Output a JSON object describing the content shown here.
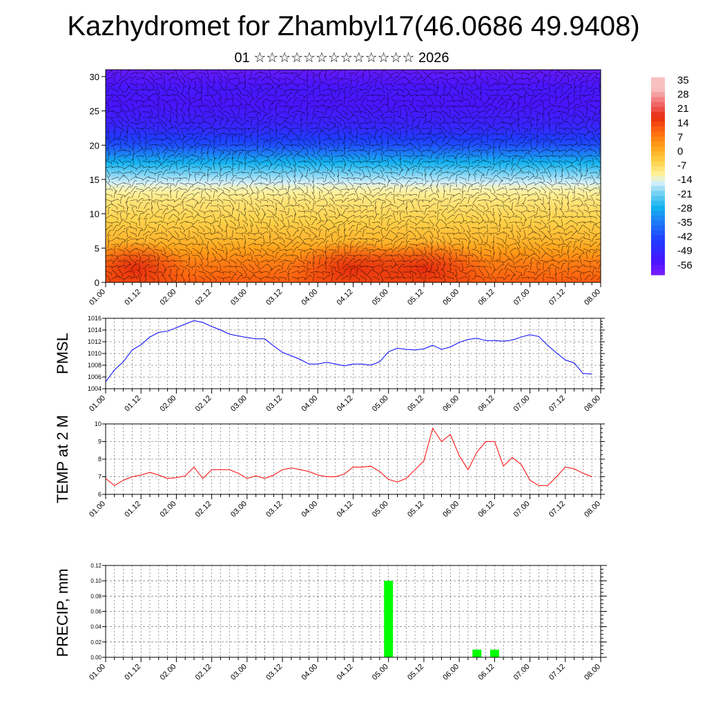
{
  "title": "Kazhydromet for Zhambyl17(46.0686 49.9408)",
  "subtitle": "01 ☆☆☆☆☆☆☆☆☆☆☆☆☆ 2026",
  "colors": {
    "pmsl_line": "#0000ff",
    "temp_line": "#ff0000",
    "precip_bar": "#00ff00",
    "grid": "#555555",
    "axis": "#000000",
    "wind_barb": "#000000"
  },
  "time_ticks": [
    "01.00",
    "01.12",
    "02.00",
    "02.12",
    "03.00",
    "03.12",
    "04.00",
    "04.12",
    "05.00",
    "05.12",
    "06.00",
    "06.12",
    "07.00",
    "07.12",
    "08.00"
  ],
  "chart_data": [
    {
      "type": "heatmap",
      "name": "cross-section temperature with wind barbs",
      "x_range": [
        0,
        168
      ],
      "x_unit": "hours from 01.00",
      "ylim": [
        0,
        31
      ],
      "y_ticks": [
        0,
        5,
        10,
        15,
        20,
        25,
        30
      ],
      "colorbar_labels": [
        "35",
        "28",
        "21",
        "14",
        "7",
        "0",
        "-7",
        "-14",
        "-21",
        "-28",
        "-35",
        "-42",
        "-49",
        "-56"
      ],
      "colorbar_range": [
        -63,
        42
      ],
      "colormap": [
        {
          "v": -63,
          "c": "#7b1fff"
        },
        {
          "v": -56,
          "c": "#4a14ff"
        },
        {
          "v": -45,
          "c": "#1f3cff"
        },
        {
          "v": -35,
          "c": "#1e7cf6"
        },
        {
          "v": -27,
          "c": "#12b4f0"
        },
        {
          "v": -19,
          "c": "#7fd4f5"
        },
        {
          "v": -14,
          "c": "#d6f0f8"
        },
        {
          "v": -10,
          "c": "#fff3a0"
        },
        {
          "v": -3,
          "c": "#ffd24a"
        },
        {
          "v": 5,
          "c": "#ffa21a"
        },
        {
          "v": 13,
          "c": "#ff6a10"
        },
        {
          "v": 21,
          "c": "#e82a10"
        },
        {
          "v": 28,
          "c": "#f06a6a"
        },
        {
          "v": 36,
          "c": "#f9c2c2"
        }
      ],
      "profile": [
        {
          "z": 0,
          "t": 15
        },
        {
          "z": 3,
          "t": 10
        },
        {
          "z": 6,
          "t": 2
        },
        {
          "z": 9,
          "t": -3
        },
        {
          "z": 12,
          "t": -7
        },
        {
          "z": 14,
          "t": -12
        },
        {
          "z": 16,
          "t": -20
        },
        {
          "z": 18,
          "t": -30
        },
        {
          "z": 20,
          "t": -42
        },
        {
          "z": 23,
          "t": -52
        },
        {
          "z": 26,
          "t": -56
        },
        {
          "z": 28,
          "t": -55
        },
        {
          "z": 31,
          "t": -60
        }
      ],
      "warm_cores": [
        {
          "x": 84,
          "z": 2,
          "dt": 8
        },
        {
          "x": 108,
          "z": 2,
          "dt": 9
        },
        {
          "x": 10,
          "z": 2,
          "dt": 4
        }
      ]
    },
    {
      "type": "line",
      "name": "PMSL",
      "ylabel": "PMSL",
      "ylim": [
        1004,
        1016
      ],
      "y_ticks": [
        1004,
        1006,
        1008,
        1010,
        1012,
        1014,
        1016
      ],
      "x": [
        0,
        3,
        6,
        9,
        12,
        15,
        18,
        21,
        24,
        27,
        30,
        33,
        36,
        39,
        42,
        45,
        48,
        51,
        54,
        57,
        60,
        63,
        66,
        69,
        72,
        75,
        78,
        81,
        84,
        87,
        90,
        93,
        96,
        99,
        102,
        105,
        108,
        111,
        114,
        117,
        120,
        123,
        126,
        129,
        132,
        135,
        138,
        141,
        144,
        147,
        150,
        153,
        156,
        159,
        162,
        165
      ],
      "y": [
        1005.2,
        1007.2,
        1008.6,
        1010.6,
        1011.5,
        1012.8,
        1013.6,
        1013.8,
        1014.4,
        1015.0,
        1015.6,
        1015.3,
        1014.6,
        1014.0,
        1013.3,
        1013.0,
        1012.7,
        1012.5,
        1012.5,
        1011.3,
        1010.2,
        1009.6,
        1009.0,
        1008.2,
        1008.2,
        1008.5,
        1008.2,
        1007.9,
        1008.2,
        1008.2,
        1008.0,
        1008.6,
        1010.3,
        1010.9,
        1010.7,
        1010.6,
        1010.8,
        1011.4,
        1010.7,
        1011.1,
        1011.9,
        1012.4,
        1012.6,
        1012.2,
        1012.2,
        1012.1,
        1012.3,
        1012.8,
        1013.2,
        1012.9,
        1011.4,
        1010.1,
        1008.9,
        1008.4,
        1006.6,
        1006.5
      ]
    },
    {
      "type": "line",
      "name": "TEMP at 2 M",
      "ylabel": "TEMP at 2 M",
      "ylim": [
        6,
        10
      ],
      "y_ticks": [
        6,
        7,
        8,
        9,
        10
      ],
      "x": [
        0,
        3,
        6,
        9,
        12,
        15,
        18,
        21,
        24,
        27,
        30,
        33,
        36,
        39,
        42,
        45,
        48,
        51,
        54,
        57,
        60,
        63,
        66,
        69,
        72,
        75,
        78,
        81,
        84,
        87,
        90,
        93,
        96,
        99,
        102,
        105,
        108,
        111,
        114,
        117,
        120,
        123,
        126,
        129,
        132,
        135,
        138,
        141,
        144,
        147,
        150,
        153,
        156,
        159,
        162,
        165
      ],
      "y": [
        6.9,
        6.5,
        6.8,
        7.0,
        7.1,
        7.25,
        7.1,
        6.9,
        6.95,
        7.05,
        7.55,
        6.9,
        7.4,
        7.4,
        7.4,
        7.2,
        6.9,
        7.05,
        6.9,
        7.1,
        7.4,
        7.5,
        7.4,
        7.3,
        7.1,
        7.0,
        7.0,
        7.15,
        7.55,
        7.55,
        7.6,
        7.3,
        6.85,
        6.7,
        6.9,
        7.4,
        7.9,
        9.75,
        9.0,
        9.4,
        8.2,
        7.4,
        8.4,
        9.0,
        9.0,
        7.6,
        8.1,
        7.7,
        6.8,
        6.5,
        6.5,
        7.0,
        7.55,
        7.45,
        7.2,
        7.0
      ]
    },
    {
      "type": "bar",
      "name": "PRECIP, mm",
      "ylabel": "PRECIP, mm",
      "ylim": [
        0,
        0.12
      ],
      "y_ticks": [
        0.0,
        0.02,
        0.04,
        0.06,
        0.08,
        0.1,
        0.12
      ],
      "x": [
        96,
        126,
        132
      ],
      "values": [
        0.1,
        0.01,
        0.01
      ]
    }
  ]
}
